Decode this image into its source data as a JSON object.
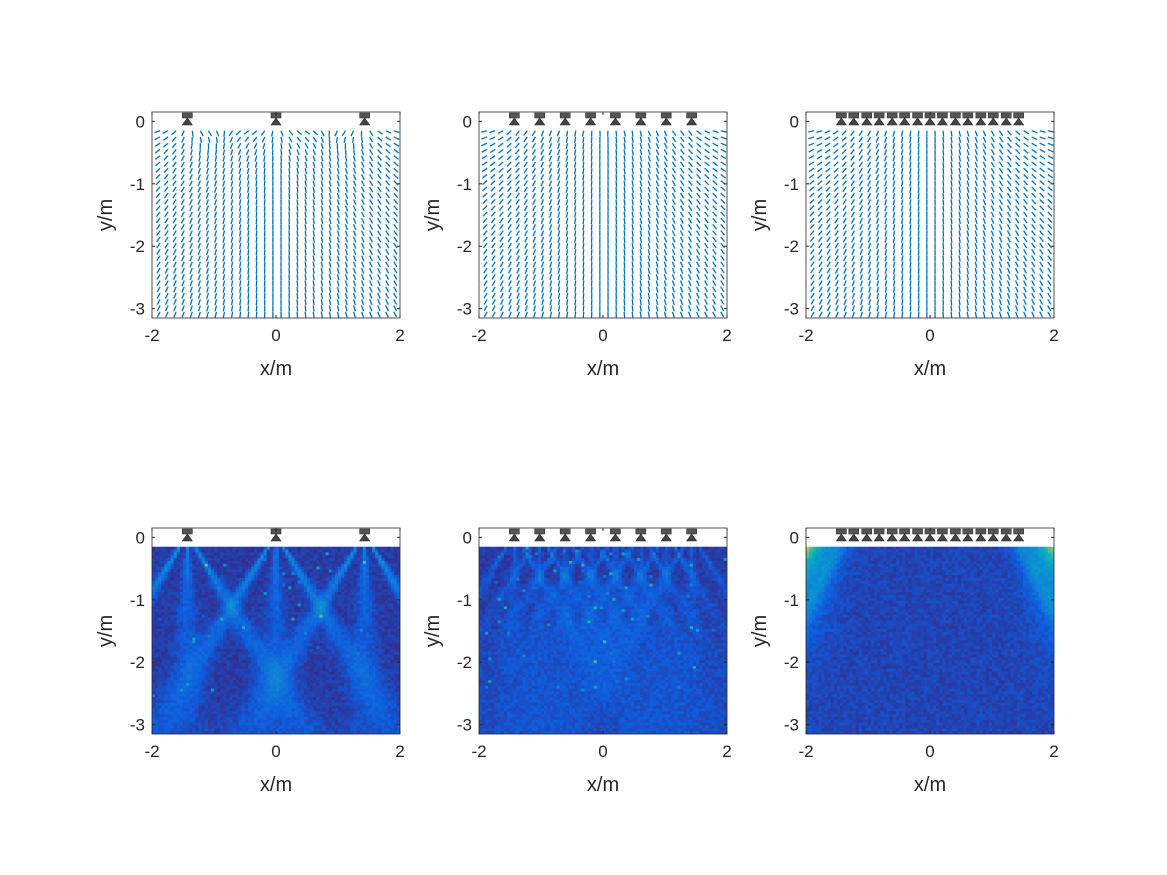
{
  "chart_data": [
    {
      "type": "quiver",
      "xlabel": "x/m",
      "ylabel": "y/m",
      "xlim": [
        -2,
        2
      ],
      "ylim": [
        -3.15,
        0.15
      ],
      "xticks": [
        "-2",
        "0",
        "2"
      ],
      "yticks": [
        "0",
        "-1",
        "-2",
        "-3"
      ],
      "speakers_x": [
        -1.43,
        0,
        1.43
      ],
      "color": "#0072BD"
    },
    {
      "type": "quiver",
      "xlabel": "x/m",
      "ylabel": "y/m",
      "xlim": [
        -2,
        2
      ],
      "ylim": [
        -3.15,
        0.15
      ],
      "xticks": [
        "-2",
        "0",
        "2"
      ],
      "yticks": [
        "0",
        "-1",
        "-2",
        "-3"
      ],
      "speakers_x": [
        -1.43,
        -1.02,
        -0.61,
        -0.2,
        0.2,
        0.61,
        1.02,
        1.43
      ],
      "color": "#0072BD"
    },
    {
      "type": "quiver",
      "xlabel": "x/m",
      "ylabel": "y/m",
      "xlim": [
        -2,
        2
      ],
      "ylim": [
        -3.15,
        0.15
      ],
      "xticks": [
        "-2",
        "0",
        "2"
      ],
      "yticks": [
        "0",
        "-1",
        "-2",
        "-3"
      ],
      "speakers_x": [
        -1.43,
        -1.23,
        -1.02,
        -0.82,
        -0.61,
        -0.41,
        -0.2,
        0,
        0.2,
        0.41,
        0.61,
        0.82,
        1.02,
        1.23,
        1.43
      ],
      "color": "#0072BD"
    },
    {
      "type": "heatmap",
      "xlabel": "x/m",
      "ylabel": "y/m",
      "xlim": [
        -2,
        2
      ],
      "ylim": [
        -3.15,
        0.15
      ],
      "xticks": [
        "-2",
        "0",
        "2"
      ],
      "yticks": [
        "0",
        "-1",
        "-2",
        "-3"
      ],
      "speakers_x": [
        -1.43,
        0,
        1.43
      ],
      "colormap": "parula"
    },
    {
      "type": "heatmap",
      "xlabel": "x/m",
      "ylabel": "y/m",
      "xlim": [
        -2,
        2
      ],
      "ylim": [
        -3.15,
        0.15
      ],
      "xticks": [
        "-2",
        "0",
        "2"
      ],
      "yticks": [
        "0",
        "-1",
        "-2",
        "-3"
      ],
      "speakers_x": [
        -1.43,
        -1.02,
        -0.61,
        -0.2,
        0.2,
        0.61,
        1.02,
        1.43
      ],
      "colormap": "parula"
    },
    {
      "type": "heatmap",
      "xlabel": "x/m",
      "ylabel": "y/m",
      "xlim": [
        -2,
        2
      ],
      "ylim": [
        -3.15,
        0.15
      ],
      "xticks": [
        "-2",
        "0",
        "2"
      ],
      "yticks": [
        "0",
        "-1",
        "-2",
        "-3"
      ],
      "speakers_x": [
        -1.43,
        -1.23,
        -1.02,
        -0.82,
        -0.61,
        -0.41,
        -0.2,
        0,
        0.2,
        0.41,
        0.61,
        0.82,
        1.02,
        1.23,
        1.43
      ],
      "colormap": "parula"
    }
  ]
}
